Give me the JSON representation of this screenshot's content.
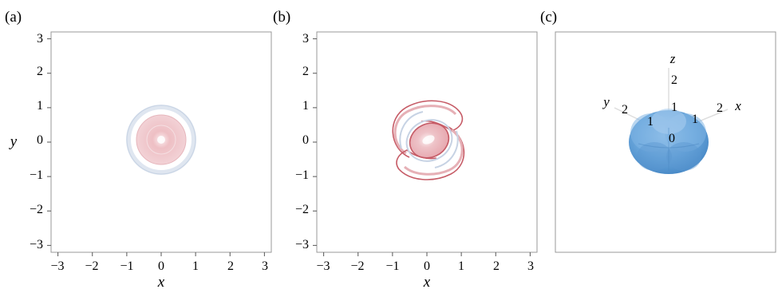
{
  "figure": {
    "panels": [
      {
        "id": "a",
        "label": "(a)",
        "xlabel": "x",
        "ylabel": "y",
        "xlim": [
          -3.2,
          3.2
        ],
        "ylim": [
          -3.2,
          3.2
        ],
        "xticks": [
          "−3",
          "−2",
          "−1",
          "0",
          "1",
          "2",
          "3"
        ],
        "yticks": [
          "3",
          "2",
          "1",
          "0",
          "−1",
          "−2",
          "−3"
        ],
        "tick_values": [
          -3,
          -2,
          -1,
          0,
          1,
          2,
          3
        ]
      },
      {
        "id": "b",
        "label": "(b)",
        "xlabel": "x",
        "ylabel": "",
        "xlim": [
          -3.2,
          3.2
        ],
        "ylim": [
          -3.2,
          3.2
        ],
        "xticks": [
          "−3",
          "−2",
          "−1",
          "0",
          "1",
          "2",
          "3"
        ],
        "yticks": [
          "3",
          "2",
          "1",
          "0",
          "−1",
          "−2",
          "−3"
        ],
        "tick_values": [
          -3,
          -2,
          -1,
          0,
          1,
          2,
          3
        ]
      },
      {
        "id": "c",
        "label": "(c)",
        "axes3d": {
          "z_label": "z",
          "y_label": "y",
          "x_label": "x",
          "z_ticks": [
            "2",
            "1",
            "0"
          ],
          "y_ticks": [
            "2",
            "1"
          ],
          "x_ticks": [
            "1",
            "2"
          ]
        }
      }
    ],
    "colors": {
      "positive": "#c96a73",
      "negative": "#9fb2cc",
      "surface": "#5b9bd5",
      "frame": "#999999"
    }
  }
}
